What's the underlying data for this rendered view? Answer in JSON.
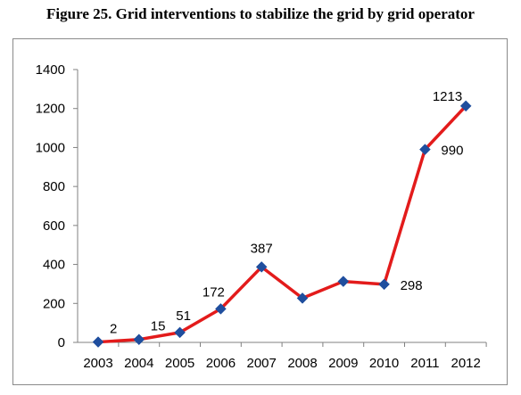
{
  "figure": {
    "title": "Figure 25. Grid interventions to stabilize the grid by grid operator"
  },
  "chart_data": {
    "type": "line",
    "title": "",
    "xlabel": "",
    "ylabel": "",
    "x": [
      "2003",
      "2004",
      "2005",
      "2006",
      "2007",
      "2008",
      "2009",
      "2010",
      "2011",
      "2012"
    ],
    "series": [
      {
        "values": [
          2,
          15,
          51,
          172,
          387,
          227,
          313,
          298,
          990,
          1213
        ],
        "data_labels": [
          "2",
          "15",
          "51",
          "172",
          "387",
          "",
          "",
          "298",
          "990",
          "1213"
        ]
      }
    ],
    "ylim": [
      0,
      1400
    ],
    "yticks": [
      "0",
      "200",
      "400",
      "600",
      "800",
      "1000",
      "1200",
      "1400"
    ],
    "grid": false,
    "legend": "none",
    "line_color": "#e31b1b",
    "marker_color": "#1f4e9e"
  }
}
